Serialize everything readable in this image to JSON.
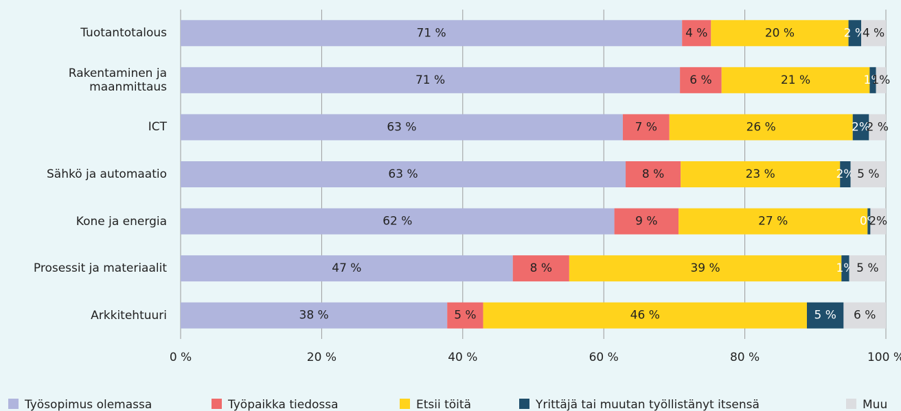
{
  "chart_data": {
    "type": "stacked-bar-horizontal",
    "categories": [
      "Tuotantotalous",
      "Rakentaminen ja maanmittaus",
      "ICT",
      "Sähkö ja automaatio",
      "Kone ja energia",
      "Prosessit ja materiaalit",
      "Arkkitehtuuri"
    ],
    "series": [
      {
        "name": "Työsopimus olemassa",
        "color": "#b0b5dd",
        "values": [
          71.1,
          70.8,
          62.7,
          63.1,
          61.5,
          47.1,
          37.8
        ],
        "value_labels": [
          "71 %",
          "71 %",
          "63 %",
          "63 %",
          "62 %",
          "47 %",
          "38 %"
        ]
      },
      {
        "name": "Työpaikka tiedossa",
        "color": "#ef6b6b",
        "values": [
          4.1,
          5.9,
          6.6,
          7.8,
          9.1,
          8.0,
          5.1
        ],
        "value_labels": [
          "4 %",
          "6 %",
          "7 %",
          "8 %",
          "9 %",
          "8 %",
          "5 %"
        ]
      },
      {
        "name": "Etsii töitä",
        "color": "#ffd31c",
        "values": [
          19.5,
          21.0,
          26.0,
          22.6,
          26.8,
          38.6,
          45.9
        ],
        "value_labels": [
          "20 %",
          "21 %",
          "26 %",
          "23 %",
          "27 %",
          "39 %",
          "46 %"
        ]
      },
      {
        "name": "Yrittäjä tai muutan työllistänyt itsensä",
        "color": "#1f4e6b",
        "values": [
          1.8,
          0.9,
          2.3,
          1.5,
          0.4,
          1.1,
          5.2
        ],
        "value_labels": [
          "2 %",
          "1%",
          "2%",
          "2%",
          "0%",
          "1%",
          "5 %"
        ]
      },
      {
        "name": "Muu",
        "color": "#dcdde0",
        "values": [
          3.5,
          1.4,
          2.4,
          5.0,
          2.2,
          5.2,
          6.0
        ],
        "value_labels": [
          "4 %",
          "1%",
          "2 %",
          "5 %",
          "2%",
          "5 %",
          "6 %"
        ]
      }
    ],
    "xlim": [
      0,
      100
    ],
    "xticks": [
      {
        "value": 0,
        "label": "0 %"
      },
      {
        "value": 20,
        "label": "20 %"
      },
      {
        "value": 40,
        "label": "40 %"
      },
      {
        "value": 60,
        "label": "60 %"
      },
      {
        "value": 80,
        "label": "80 %"
      },
      {
        "value": 100,
        "label": "100 %"
      }
    ],
    "grid": true
  }
}
